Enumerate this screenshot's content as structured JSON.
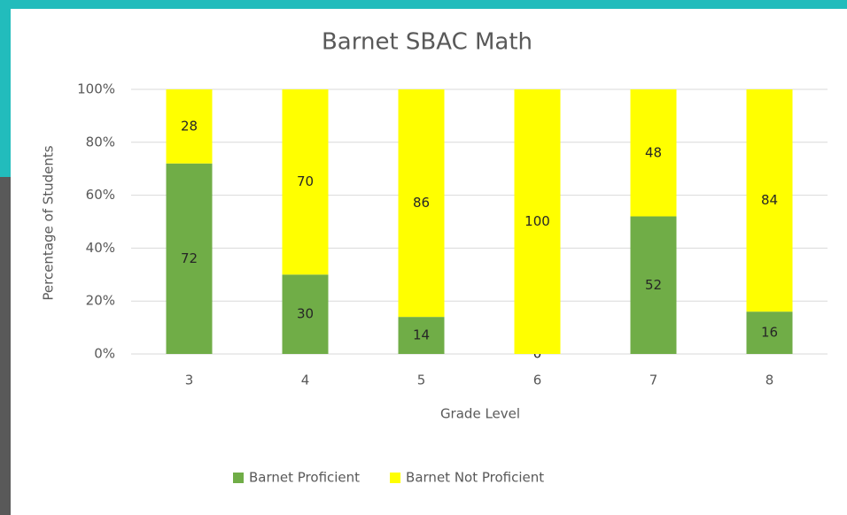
{
  "chart_data": {
    "type": "bar",
    "stacked": true,
    "title": "Barnet SBAC Math",
    "x_label": "Grade Level",
    "y_label": "Percentage of Students",
    "categories": [
      "3",
      "4",
      "5",
      "6",
      "7",
      "8"
    ],
    "series": [
      {
        "name": "Barnet Proficient",
        "color": "#70ad47",
        "values": [
          72,
          30,
          14,
          0,
          52,
          16
        ]
      },
      {
        "name": "Barnet Not Proficient",
        "color": "#ffff00",
        "values": [
          28,
          70,
          86,
          100,
          48,
          84
        ]
      }
    ],
    "ylim": [
      0,
      100
    ],
    "yticks": [
      {
        "value": 0,
        "label": "0%"
      },
      {
        "value": 20,
        "label": "20%"
      },
      {
        "value": 40,
        "label": "40%"
      },
      {
        "value": 60,
        "label": "60%"
      },
      {
        "value": 80,
        "label": "80%"
      },
      {
        "value": 100,
        "label": "100%"
      }
    ],
    "grid": true,
    "legend": "bottom"
  }
}
